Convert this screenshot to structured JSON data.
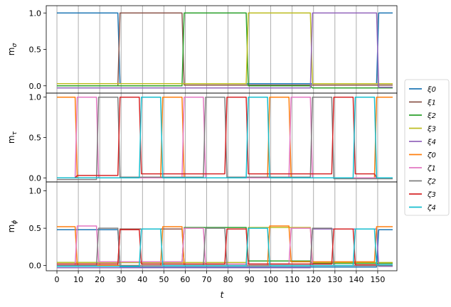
{
  "chart_data": {
    "type": "line",
    "xlabel": "t",
    "xlim": [
      -5,
      159
    ],
    "xticks": [
      0,
      10,
      20,
      30,
      40,
      50,
      60,
      70,
      80,
      90,
      100,
      110,
      120,
      130,
      140,
      150
    ],
    "vlines": [
      0,
      10,
      20,
      30,
      40,
      50,
      60,
      70,
      80,
      90,
      100,
      110,
      120,
      130,
      140,
      150
    ],
    "panels": [
      {
        "ylabel_main": "m",
        "ylabel_sub": "σ",
        "ylim": [
          -0.1,
          1.1
        ],
        "yticks": [
          0.0,
          0.5,
          1.0
        ],
        "ytick_labels": [
          "0.0",
          "0.5",
          "1.0"
        ],
        "series": [
          {
            "name": "ξ0",
            "color": "#1f77b4",
            "x": [
              0,
              28.5,
              29.5,
              149.5,
              150.5,
              157
            ],
            "y": [
              1.0,
              1.0,
              0.03,
              0.03,
              1.0,
              1.0
            ]
          },
          {
            "name": "ξ1",
            "color": "#8c564b",
            "x": [
              0,
              28.5,
              29.5,
              58.5,
              59.5,
              157
            ],
            "y": [
              0.0,
              0.0,
              1.0,
              1.0,
              0.01,
              0.01
            ]
          },
          {
            "name": "ξ2",
            "color": "#2ca02c",
            "x": [
              0,
              58.5,
              59.5,
              88.5,
              89.5,
              118.5,
              119.5,
              157
            ],
            "y": [
              0.0,
              0.0,
              1.0,
              1.0,
              0.0,
              0.0,
              -0.03,
              -0.03
            ]
          },
          {
            "name": "ξ3",
            "color": "#bcbd22",
            "x": [
              0,
              88.5,
              89.5,
              118.5,
              119.5,
              157
            ],
            "y": [
              0.03,
              0.03,
              1.0,
              1.0,
              0.03,
              0.03
            ]
          },
          {
            "name": "ξ4",
            "color": "#9467bd",
            "x": [
              0,
              118.5,
              119.5,
              149.5,
              150.5,
              157
            ],
            "y": [
              -0.03,
              -0.03,
              1.0,
              1.0,
              -0.02,
              -0.02
            ]
          }
        ]
      },
      {
        "ylabel_main": "m",
        "ylabel_sub": "τ",
        "ylim": [
          -0.05,
          1.05
        ],
        "yticks": [
          0.0,
          0.5,
          1.0
        ],
        "ytick_labels": [
          "0.0",
          "0.5",
          "1.0"
        ],
        "series": [
          {
            "name": "ζ0",
            "color": "#ff7f0e",
            "x": [
              0,
              8.5,
              9.5,
              48.5,
              49.5,
              58.5,
              59.5,
              98.5,
              99.5,
              108.5,
              109.5,
              148.5,
              149.5,
              157
            ],
            "y": [
              1.0,
              1.0,
              0.0,
              0.0,
              1.0,
              1.0,
              0.0,
              0.0,
              1.0,
              1.0,
              0.0,
              0.0,
              1.0,
              1.0
            ]
          },
          {
            "name": "ζ1",
            "color": "#e377c2",
            "x": [
              0,
              8.5,
              9.5,
              18.5,
              19.5,
              58.5,
              59.5,
              68.5,
              69.5,
              108.5,
              109.5,
              118.5,
              119.5,
              157
            ],
            "y": [
              0.0,
              0.0,
              1.0,
              1.0,
              0.0,
              0.0,
              1.0,
              1.0,
              0.0,
              0.0,
              1.0,
              1.0,
              0.0,
              0.0
            ]
          },
          {
            "name": "ζ2",
            "color": "#7f7f7f",
            "x": [
              0,
              18.5,
              19.5,
              28.5,
              29.5,
              68.5,
              69.5,
              78.5,
              79.5,
              118.5,
              119.5,
              128.5,
              129.5,
              157
            ],
            "y": [
              -0.02,
              -0.02,
              1.0,
              1.0,
              0.01,
              0.01,
              1.0,
              1.0,
              0.01,
              0.01,
              1.0,
              1.0,
              -0.01,
              -0.01
            ]
          },
          {
            "name": "ζ3",
            "color": "#d62728",
            "x": [
              0,
              8.5,
              9.5,
              28.5,
              29.5,
              38.5,
              39.5,
              78.5,
              79.5,
              88.5,
              89.5,
              128.5,
              129.5,
              138.5,
              139.5,
              148.5,
              149.5,
              157
            ],
            "y": [
              0.0,
              0.0,
              0.03,
              0.03,
              1.0,
              1.0,
              0.05,
              0.05,
              1.0,
              1.0,
              0.05,
              0.05,
              1.0,
              1.0,
              0.05,
              0.05,
              0.0,
              0.0
            ]
          },
          {
            "name": "ζ4",
            "color": "#17becf",
            "x": [
              0,
              38.5,
              39.5,
              48.5,
              49.5,
              88.5,
              89.5,
              98.5,
              99.5,
              138.5,
              139.5,
              148.5,
              149.5,
              157
            ],
            "y": [
              0.0,
              0.0,
              1.0,
              1.0,
              0.0,
              0.0,
              1.0,
              1.0,
              0.0,
              0.0,
              1.0,
              1.0,
              0.0,
              0.0
            ]
          }
        ]
      },
      {
        "ylabel_main": "m",
        "ylabel_sub": "ϕ",
        "ylim": [
          -0.07,
          1.12
        ],
        "yticks": [
          0.0,
          0.5,
          1.0
        ],
        "ytick_labels": [
          "0.0",
          "0.5",
          "1.0"
        ],
        "series": [
          {
            "name": "ξ0",
            "color": "#1f77b4",
            "x": [
              0,
              28.5,
              29.5,
              149.5,
              150.5,
              157
            ],
            "y": [
              0.48,
              0.48,
              -0.02,
              -0.02,
              0.48,
              0.48
            ]
          },
          {
            "name": "ξ1",
            "color": "#8c564b",
            "x": [
              0,
              28.5,
              29.5,
              58.5,
              59.5,
              157
            ],
            "y": [
              0.0,
              0.0,
              0.49,
              0.49,
              0.0,
              0.0
            ]
          },
          {
            "name": "ξ2",
            "color": "#2ca02c",
            "x": [
              0,
              58.5,
              59.5,
              88.5,
              89.5,
              118.5,
              119.5,
              157
            ],
            "y": [
              0.04,
              0.04,
              0.51,
              0.51,
              0.06,
              0.06,
              0.03,
              0.03
            ]
          },
          {
            "name": "ξ3",
            "color": "#bcbd22",
            "x": [
              0,
              88.5,
              89.5,
              118.5,
              119.5,
              157
            ],
            "y": [
              0.04,
              0.04,
              0.51,
              0.51,
              0.04,
              0.04
            ]
          },
          {
            "name": "ξ4",
            "color": "#9467bd",
            "x": [
              0,
              118.5,
              119.5,
              149.5,
              150.5,
              157
            ],
            "y": [
              -0.03,
              -0.03,
              0.49,
              0.49,
              -0.01,
              -0.01
            ]
          },
          {
            "name": "ζ0",
            "color": "#ff7f0e",
            "x": [
              0,
              8.5,
              9.5,
              48.5,
              49.5,
              58.5,
              59.5,
              98.5,
              99.5,
              108.5,
              109.5,
              148.5,
              149.5,
              157
            ],
            "y": [
              0.52,
              0.52,
              0.0,
              0.0,
              0.52,
              0.52,
              0.0,
              0.0,
              0.53,
              0.53,
              0.05,
              0.05,
              0.52,
              0.52
            ]
          },
          {
            "name": "ζ1",
            "color": "#e377c2",
            "x": [
              0,
              8.5,
              9.5,
              18.5,
              19.5,
              58.5,
              59.5,
              68.5,
              69.5,
              108.5,
              109.5,
              118.5,
              119.5,
              157
            ],
            "y": [
              0.0,
              0.0,
              0.53,
              0.53,
              0.05,
              0.05,
              0.5,
              0.5,
              0.02,
              0.02,
              0.5,
              0.5,
              0.0,
              0.0
            ]
          },
          {
            "name": "ζ2",
            "color": "#7f7f7f",
            "x": [
              0,
              18.5,
              19.5,
              28.5,
              29.5,
              68.5,
              69.5,
              78.5,
              79.5,
              118.5,
              119.5,
              128.5,
              129.5,
              157
            ],
            "y": [
              0.0,
              0.0,
              0.5,
              0.5,
              0.0,
              0.0,
              0.5,
              0.5,
              0.0,
              0.0,
              0.5,
              0.5,
              0.0,
              0.0
            ]
          },
          {
            "name": "ζ3",
            "color": "#d62728",
            "x": [
              0,
              28.5,
              29.5,
              38.5,
              39.5,
              78.5,
              79.5,
              88.5,
              89.5,
              128.5,
              129.5,
              138.5,
              139.5,
              157
            ],
            "y": [
              0.02,
              0.02,
              0.48,
              0.48,
              0.02,
              0.02,
              0.49,
              0.49,
              0.02,
              0.02,
              0.49,
              0.49,
              0.01,
              0.01
            ]
          },
          {
            "name": "ζ4",
            "color": "#17becf",
            "x": [
              0,
              38.5,
              39.5,
              48.5,
              49.5,
              88.5,
              89.5,
              98.5,
              99.5,
              138.5,
              139.5,
              148.5,
              149.5,
              157
            ],
            "y": [
              -0.01,
              -0.01,
              0.49,
              0.49,
              0.0,
              0.0,
              0.5,
              0.5,
              0.0,
              0.0,
              0.49,
              0.49,
              0.01,
              0.01
            ]
          }
        ]
      }
    ],
    "legend": {
      "placement": "right",
      "entries": [
        {
          "label": "ξ0",
          "color": "#1f77b4"
        },
        {
          "label": "ξ1",
          "color": "#8c564b"
        },
        {
          "label": "ξ2",
          "color": "#2ca02c"
        },
        {
          "label": "ξ3",
          "color": "#bcbd22"
        },
        {
          "label": "ξ4",
          "color": "#9467bd"
        },
        {
          "label": "ζ0",
          "color": "#ff7f0e"
        },
        {
          "label": "ζ1",
          "color": "#e377c2"
        },
        {
          "label": "ζ2",
          "color": "#7f7f7f"
        },
        {
          "label": "ζ3",
          "color": "#d62728"
        },
        {
          "label": "ζ4",
          "color": "#17becf"
        }
      ]
    }
  }
}
